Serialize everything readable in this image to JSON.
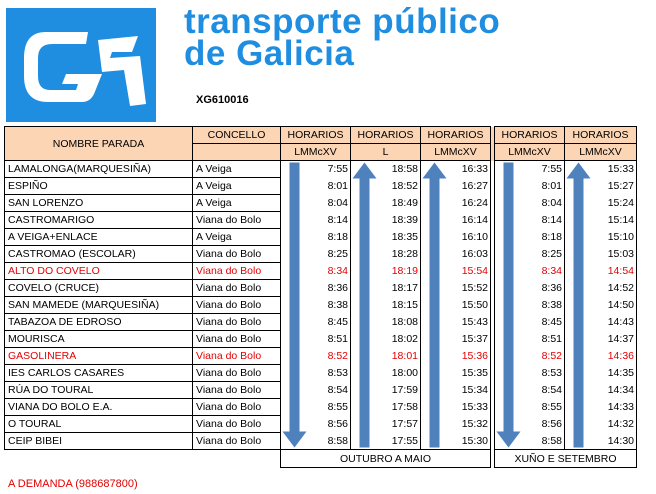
{
  "header": {
    "title_line1": "transporte público",
    "title_line2": "de Galicia",
    "route_code": "XG610016"
  },
  "table": {
    "col_stop": "NOMBRE PARADA",
    "col_council": "CONCELLO",
    "schedule_label": "HORARIOS",
    "days": [
      "LMMcXV",
      "L",
      "LMMcXV",
      "LMMcXV",
      "LMMcXV"
    ],
    "rows": [
      {
        "stop": "LAMALONGA(MARQUESIÑA)",
        "council": "A Veiga",
        "times": [
          "7:55",
          "18:58",
          "16:33",
          "7:55",
          "15:33"
        ],
        "highlight": false
      },
      {
        "stop": "ESPIÑO",
        "council": "A Veiga",
        "times": [
          "8:01",
          "18:52",
          "16:27",
          "8:01",
          "15:27"
        ],
        "highlight": false
      },
      {
        "stop": "SAN LORENZO",
        "council": "A Veiga",
        "times": [
          "8:04",
          "18:49",
          "16:24",
          "8:04",
          "15:24"
        ],
        "highlight": false
      },
      {
        "stop": "CASTROMARIGO",
        "council": "Viana do Bolo",
        "times": [
          "8:14",
          "18:39",
          "16:14",
          "8:14",
          "15:14"
        ],
        "highlight": false
      },
      {
        "stop": "A VEIGA+ENLACE",
        "council": "A Veiga",
        "times": [
          "8:18",
          "18:35",
          "16:10",
          "8:18",
          "15:10"
        ],
        "highlight": false
      },
      {
        "stop": "CASTROMAO (ESCOLAR)",
        "council": "Viana do Bolo",
        "times": [
          "8:25",
          "18:28",
          "16:03",
          "8:25",
          "15:03"
        ],
        "highlight": false
      },
      {
        "stop": "ALTO DO COVELO",
        "council": "Viana do Bolo",
        "times": [
          "8:34",
          "18:19",
          "15:54",
          "8:34",
          "14:54"
        ],
        "highlight": true
      },
      {
        "stop": "COVELO (CRUCE)",
        "council": "Viana do Bolo",
        "times": [
          "8:36",
          "18:17",
          "15:52",
          "8:36",
          "14:52"
        ],
        "highlight": false
      },
      {
        "stop": "SAN MAMEDE (MARQUESIÑA)",
        "council": "Viana do Bolo",
        "times": [
          "8:38",
          "18:15",
          "15:50",
          "8:38",
          "14:50"
        ],
        "highlight": false
      },
      {
        "stop": "TABAZOA DE EDROSO",
        "council": "Viana do Bolo",
        "times": [
          "8:45",
          "18:08",
          "15:43",
          "8:45",
          "14:43"
        ],
        "highlight": false
      },
      {
        "stop": "MOURISCA",
        "council": "Viana do Bolo",
        "times": [
          "8:51",
          "18:02",
          "15:37",
          "8:51",
          "14:37"
        ],
        "highlight": false
      },
      {
        "stop": "GASOLINERA",
        "council": "Viana do Bolo",
        "times": [
          "8:52",
          "18:01",
          "15:36",
          "8:52",
          "14:36"
        ],
        "highlight": true
      },
      {
        "stop": "IES CARLOS CASARES",
        "council": "Viana do Bolo",
        "times": [
          "8:53",
          "18:00",
          "15:35",
          "8:53",
          "14:35"
        ],
        "highlight": false
      },
      {
        "stop": "RÚA DO TOURAL",
        "council": "Viana do Bolo",
        "times": [
          "8:54",
          "17:59",
          "15:34",
          "8:54",
          "14:34"
        ],
        "highlight": false
      },
      {
        "stop": "VIANA DO BOLO E.A.",
        "council": "Viana do Bolo",
        "times": [
          "8:55",
          "17:58",
          "15:33",
          "8:55",
          "14:33"
        ],
        "highlight": false
      },
      {
        "stop": "O TOURAL",
        "council": "Viana do Bolo",
        "times": [
          "8:56",
          "17:57",
          "15:32",
          "8:56",
          "14:32"
        ],
        "highlight": false
      },
      {
        "stop": "CEIP BIBEI",
        "council": "Viana do Bolo",
        "times": [
          "8:58",
          "17:55",
          "15:30",
          "8:58",
          "14:30"
        ],
        "highlight": false
      }
    ],
    "period_winter": "OUTUBRO A MAIO",
    "period_summer": "XUÑO E SETEMBRO"
  },
  "footer": {
    "on_demand": "A DEMANDA (988687800)"
  },
  "colors": {
    "brand_blue": "#1f8ee0",
    "arrow_blue": "#4f81bd",
    "header_fill": "#fcd5b4",
    "highlight_red": "#e30000"
  },
  "icons": {
    "logo": "xunta-galicia-g-logo",
    "down_arrow": "arrow-down-icon",
    "up_arrow": "arrow-up-icon"
  }
}
